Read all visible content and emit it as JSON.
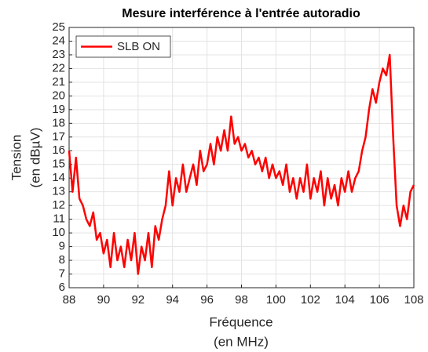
{
  "chart_data": {
    "type": "line",
    "title": "Mesure interférence à l'entrée autoradio",
    "xlabel": [
      "Fréquence",
      "(en MHz)"
    ],
    "ylabel": [
      "Tension",
      "(en dBµV)"
    ],
    "x": [
      88,
      88.2,
      88.4,
      88.6,
      88.8,
      89,
      89.2,
      89.4,
      89.6,
      89.8,
      90,
      90.2,
      90.4,
      90.6,
      90.8,
      91,
      91.2,
      91.4,
      91.6,
      91.8,
      92,
      92.2,
      92.4,
      92.6,
      92.8,
      93,
      93.2,
      93.4,
      93.6,
      93.8,
      94,
      94.2,
      94.4,
      94.6,
      94.8,
      95,
      95.2,
      95.4,
      95.6,
      95.8,
      96,
      96.2,
      96.4,
      96.6,
      96.8,
      97,
      97.2,
      97.4,
      97.6,
      97.8,
      98,
      98.2,
      98.4,
      98.6,
      98.8,
      99,
      99.2,
      99.4,
      99.6,
      99.8,
      100,
      100.2,
      100.4,
      100.6,
      100.8,
      101,
      101.2,
      101.4,
      101.6,
      101.8,
      102,
      102.2,
      102.4,
      102.6,
      102.8,
      103,
      103.2,
      103.4,
      103.6,
      103.8,
      104,
      104.2,
      104.4,
      104.6,
      104.8,
      105,
      105.2,
      105.4,
      105.6,
      105.8,
      106,
      106.2,
      106.4,
      106.6,
      106.8,
      107,
      107.2,
      107.4,
      107.6,
      107.8,
      108
    ],
    "series": [
      {
        "name": "SLB ON",
        "color": "#ff0000",
        "values": [
          16,
          13,
          15.5,
          12.5,
          12,
          11,
          10.5,
          11.5,
          9.5,
          10,
          8.5,
          9.5,
          7.5,
          10,
          8,
          9,
          7.5,
          9.5,
          8,
          10,
          7,
          9,
          8,
          10,
          7.5,
          10.5,
          9.5,
          11,
          12,
          14.5,
          12,
          14,
          13,
          15,
          13,
          14,
          15,
          13.5,
          16,
          14.5,
          15,
          16.5,
          15,
          17,
          16,
          17.5,
          16,
          18.5,
          16.5,
          17,
          16,
          16.5,
          15.5,
          16,
          15,
          15.5,
          14.5,
          15.5,
          14,
          15,
          14,
          14.5,
          13.5,
          15,
          13,
          14,
          12.5,
          14,
          13,
          15,
          12.5,
          14,
          13,
          14.5,
          12,
          14,
          12.5,
          13.5,
          12,
          14,
          13,
          14.5,
          13,
          14,
          14.5,
          16,
          17,
          19,
          20.5,
          19.5,
          21,
          22,
          21.5,
          23,
          17,
          12,
          10.5,
          12,
          11,
          13,
          13.5
        ]
      }
    ],
    "xlim": [
      88,
      108
    ],
    "ylim": [
      6,
      25
    ],
    "xticks": [
      88,
      90,
      92,
      94,
      96,
      98,
      100,
      102,
      104,
      106,
      108
    ],
    "yticks": [
      6,
      7,
      8,
      9,
      10,
      11,
      12,
      13,
      14,
      15,
      16,
      17,
      18,
      19,
      20,
      21,
      22,
      23,
      24,
      25
    ],
    "grid": true,
    "legend": "upper left"
  }
}
